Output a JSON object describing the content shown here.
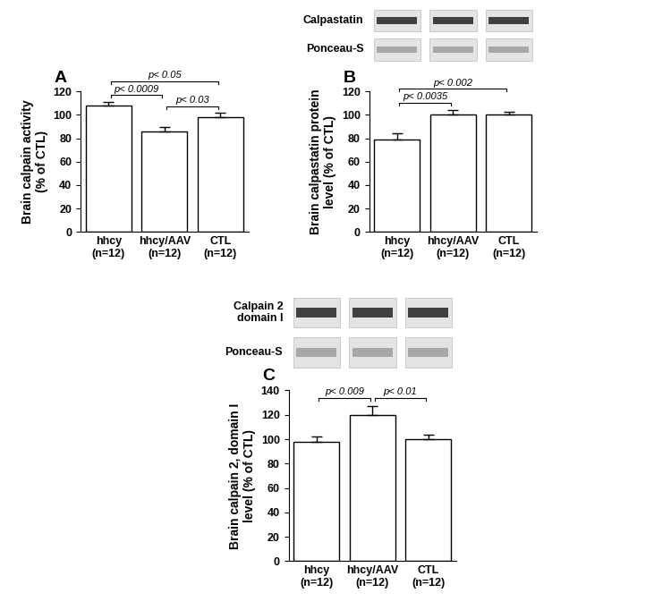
{
  "chart_data": [
    {
      "type": "bar",
      "title": "A",
      "y_label": "Brain calpain activity\n(% of CTL)",
      "categories": [
        "hhcy\n(n=12)",
        "hhcy/AAV\n(n=12)",
        "CTL\n(n=12)"
      ],
      "values": [
        108,
        86,
        98
      ],
      "errors": [
        3,
        3.5,
        3.5
      ],
      "color": "#ffffff",
      "ylim": [
        0,
        120
      ],
      "yticks": [
        0,
        20,
        40,
        60,
        80,
        100,
        120
      ],
      "annotations": [
        {
          "text": "p< 0.0009",
          "between": [
            "hhcy\n(n=12)",
            "hhcy/AAV\n(n=12)"
          ]
        },
        {
          "text": "p< 0.03",
          "between": [
            "hhcy/AAV\n(n=12)",
            "CTL\n(n=12)"
          ]
        },
        {
          "text": "p< 0.05",
          "between": [
            "hhcy\n(n=12)",
            "CTL\n(n=12)"
          ]
        }
      ]
    },
    {
      "type": "bar",
      "title": "B",
      "y_label": "Brain calpastatin protein\nlevel (% of CTL)",
      "categories": [
        "hhcy\n(n=12)",
        "hhcy/AAV\n(n=12)",
        "CTL\n(n=12)"
      ],
      "values": [
        79,
        100,
        100
      ],
      "errors": [
        5,
        4.5,
        3
      ],
      "color": "#ffffff",
      "ylim": [
        0,
        120
      ],
      "yticks": [
        0,
        20,
        40,
        60,
        80,
        100,
        120
      ],
      "blot_labels": [
        "Calpastatin",
        "Ponceau-S"
      ],
      "annotations": [
        {
          "text": "p< 0.0035",
          "between": [
            "hhcy\n(n=12)",
            "hhcy/AAV\n(n=12)"
          ]
        },
        {
          "text": "p< 0.002",
          "between": [
            "hhcy\n(n=12)",
            "CTL\n(n=12)"
          ]
        }
      ]
    },
    {
      "type": "bar",
      "title": "C",
      "y_label": "Brain calpain 2, domain I\nlevel (% of CTL)",
      "categories": [
        "hhcy\n(n=12)",
        "hhcy/AAV\n(n=12)",
        "CTL\n(n=12)"
      ],
      "values": [
        98,
        120,
        100
      ],
      "errors": [
        4.5,
        7,
        3.5
      ],
      "color": "#ffffff",
      "ylim": [
        0,
        140
      ],
      "yticks": [
        0,
        20,
        40,
        60,
        80,
        100,
        120,
        140
      ],
      "blot_labels": [
        "Calpain 2\ndomain I",
        "Ponceau-S"
      ],
      "annotations": [
        {
          "text": "p< 0.009",
          "between": [
            "hhcy\n(n=12)",
            "hhcy/AAV\n(n=12)"
          ]
        },
        {
          "text": "p< 0.01",
          "between": [
            "hhcy/AAV\n(n=12)",
            "CTL\n(n=12)"
          ]
        }
      ]
    }
  ]
}
